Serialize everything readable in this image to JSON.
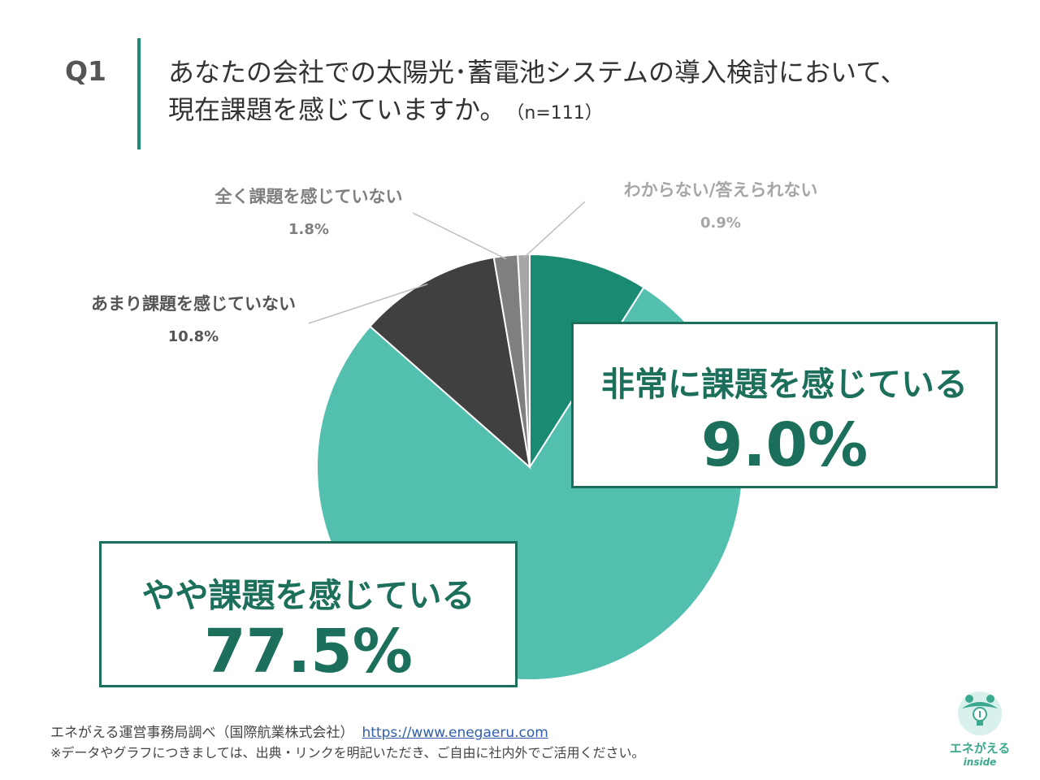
{
  "header": {
    "q_label": "Q1",
    "question_line1": "あなたの会社での太陽光･蓄電池システムの導入検討において、",
    "question_line2": "現在課題を感じていますか。",
    "sample_size": "（n=111）"
  },
  "chart_data": {
    "type": "pie",
    "start": "12 o'clock",
    "direction": "clockwise",
    "slices": [
      {
        "label": "非常に課題を感じている",
        "value": 9.0,
        "value_label": "9.0%",
        "color": "#1b8a72"
      },
      {
        "label": "やや課題を感じている",
        "value": 77.5,
        "value_label": "77.5%",
        "color": "#53bfae"
      },
      {
        "label": "あまり課題を感じていない",
        "value": 10.8,
        "value_label": "10.8%",
        "color": "#404040"
      },
      {
        "label": "全く課題を感じていない",
        "value": 1.8,
        "value_label": "1.8%",
        "color": "#7f7f7f"
      },
      {
        "label": "わからない/答えられない",
        "value": 0.9,
        "value_label": "0.9%",
        "color": "#a6a6a6"
      }
    ]
  },
  "footer": {
    "source": "エネがえる運営事務局調べ（国際航業株式会社）",
    "url": "https://www.enegaeru.com",
    "note": "※データやグラフにつきましては、出典・リンクを明記いただき、ご自由に社内外でご活用ください。"
  },
  "logo": {
    "name": "エネがえる",
    "sub": "inside"
  },
  "colors": {
    "accent": "#1e8a72",
    "callout_text": "#1b6f5b"
  }
}
